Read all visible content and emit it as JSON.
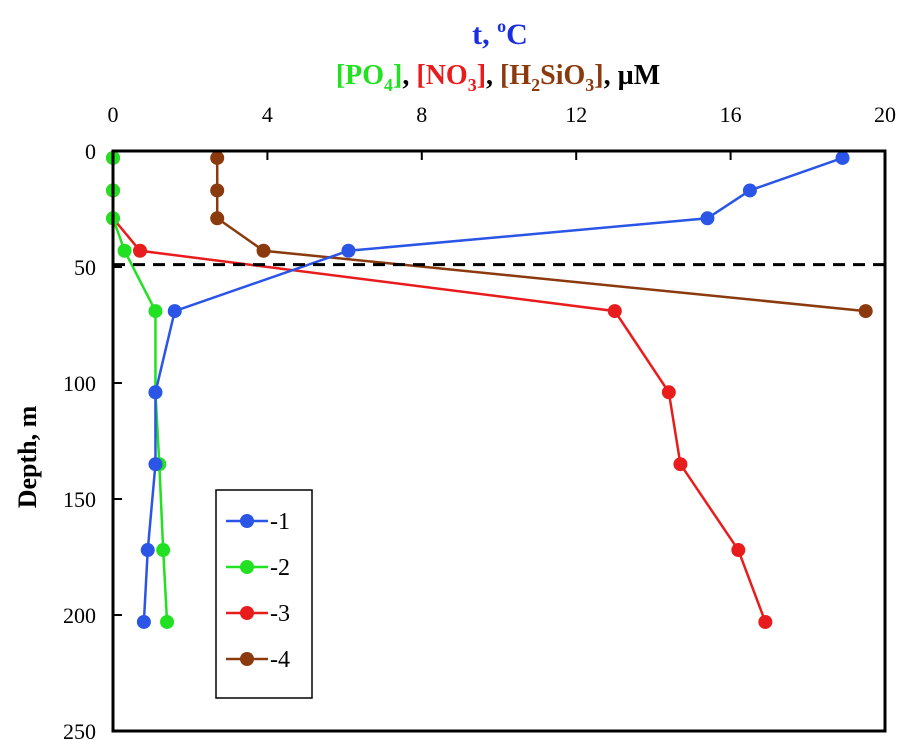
{
  "chart_data": {
    "type": "line",
    "title_line1": {
      "main": "t, ",
      "superscript": "o",
      "unit": "C",
      "color": "#1a2ee0"
    },
    "title_line2": [
      {
        "text": "[PO",
        "sub": "4",
        "close": "]",
        "color": "#22e022"
      },
      {
        "text": ", ",
        "color": "#000000"
      },
      {
        "text": "[NO",
        "sub": "3",
        "close": "]",
        "color": "#e81c1c"
      },
      {
        "text": ", ",
        "color": "#000000"
      },
      {
        "text": "[H",
        "sub": "2",
        "mid": "SiO",
        "sub2": "3",
        "close": "]",
        "color": "#8b3a0e"
      },
      {
        "text": ", µM",
        "color": "#000000"
      }
    ],
    "xlim": [
      0,
      20
    ],
    "x_ticks": [
      "0",
      "4",
      "8",
      "12",
      "16",
      "20"
    ],
    "x_tick_values": [
      0,
      4,
      8,
      12,
      16,
      20
    ],
    "ylabel": "Depth, m",
    "ylim": [
      0,
      250
    ],
    "y_ticks": [
      "0",
      "50",
      "100",
      "150",
      "200",
      "250"
    ],
    "y_tick_values": [
      0,
      50,
      100,
      150,
      200,
      250
    ],
    "reference_line": {
      "depth": 49,
      "style": "dashed",
      "color": "#000000"
    },
    "legend_position": "lower-left",
    "series": [
      {
        "name": "-1",
        "color": "#2a55e6",
        "points": [
          {
            "x": 18.9,
            "y": 3
          },
          {
            "x": 16.5,
            "y": 17
          },
          {
            "x": 15.4,
            "y": 29
          },
          {
            "x": 6.1,
            "y": 43
          },
          {
            "x": 1.6,
            "y": 69
          },
          {
            "x": 1.1,
            "y": 104
          },
          {
            "x": 1.1,
            "y": 135
          },
          {
            "x": 0.9,
            "y": 172
          },
          {
            "x": 0.8,
            "y": 203
          }
        ]
      },
      {
        "name": "-2",
        "color": "#22e022",
        "points": [
          {
            "x": 0.0,
            "y": 3
          },
          {
            "x": 0.0,
            "y": 17
          },
          {
            "x": 0.0,
            "y": 29
          },
          {
            "x": 0.3,
            "y": 43
          },
          {
            "x": 1.1,
            "y": 69
          },
          {
            "x": 1.1,
            "y": 104
          },
          {
            "x": 1.2,
            "y": 135
          },
          {
            "x": 1.3,
            "y": 172
          },
          {
            "x": 1.4,
            "y": 203
          }
        ]
      },
      {
        "name": "-3",
        "color": "#e81c1c",
        "points": [
          {
            "x": 0.0,
            "y": 3
          },
          {
            "x": 0.0,
            "y": 17
          },
          {
            "x": 0.0,
            "y": 29
          },
          {
            "x": 0.7,
            "y": 43
          },
          {
            "x": 13.0,
            "y": 69
          },
          {
            "x": 14.4,
            "y": 104
          },
          {
            "x": 14.7,
            "y": 135
          },
          {
            "x": 16.2,
            "y": 172
          },
          {
            "x": 16.9,
            "y": 203
          }
        ]
      },
      {
        "name": "-4",
        "color": "#8b3a0e",
        "points": [
          {
            "x": 2.7,
            "y": 3
          },
          {
            "x": 2.7,
            "y": 17
          },
          {
            "x": 2.7,
            "y": 29
          },
          {
            "x": 3.9,
            "y": 43
          },
          {
            "x": 19.5,
            "y": 69
          }
        ]
      }
    ]
  }
}
